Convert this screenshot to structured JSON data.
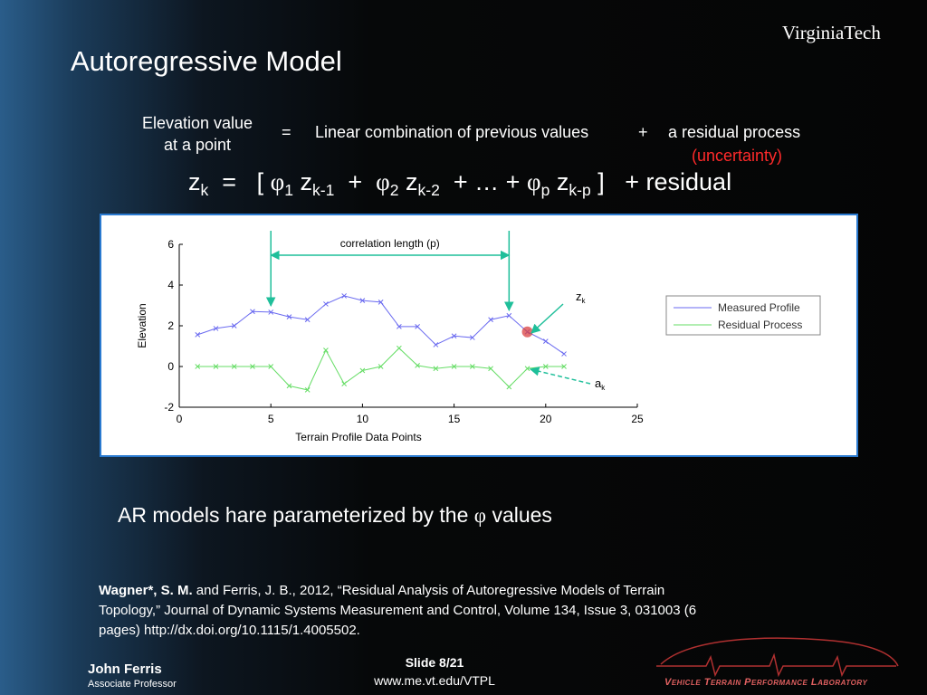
{
  "header": {
    "title": "Autoregressive Model",
    "logo": "VirginiaTech"
  },
  "definition": {
    "left": [
      "Elevation value",
      "at a point"
    ],
    "equals": "=",
    "middle": "Linear combination of previous values",
    "plus": "+",
    "right": "a residual process",
    "note": "(uncertainty)"
  },
  "equation": [
    "z",
    "k",
    "=",
    "[",
    "φ",
    "1",
    "z",
    "k-1",
    "+",
    "φ",
    "2",
    "z",
    "k-2",
    "+ … +",
    "φ",
    "p",
    "z",
    "k-p",
    "]",
    "+ residual"
  ],
  "chart_data": {
    "type": "line",
    "x": [
      1,
      2,
      3,
      4,
      5,
      6,
      7,
      8,
      9,
      10,
      11,
      12,
      13,
      14,
      15,
      16,
      17,
      18,
      19,
      20,
      21
    ],
    "series": [
      {
        "name": "Measured Profile",
        "color": "#6a6af0",
        "values": [
          1.56,
          1.87,
          2.0,
          2.7,
          2.67,
          2.44,
          2.3,
          3.07,
          3.47,
          3.24,
          3.16,
          1.96,
          1.96,
          1.07,
          1.5,
          1.42,
          2.3,
          2.5,
          1.7,
          1.24,
          0.62
        ]
      },
      {
        "name": "Residual Process",
        "color": "#66dd66",
        "values": [
          0,
          0,
          0,
          0,
          0,
          -0.95,
          -1.15,
          0.8,
          -0.85,
          -0.2,
          0,
          0.9,
          0.05,
          -0.1,
          0,
          0,
          -0.1,
          -1.0,
          -0.1,
          0,
          0
        ]
      }
    ],
    "xlim": [
      0,
      25
    ],
    "xticks": [
      0,
      5,
      10,
      15,
      20,
      25
    ],
    "ylim": [
      -2,
      6
    ],
    "yticks": [
      -2,
      0,
      2,
      4,
      6
    ],
    "xlabel": "Terrain Profile Data Points",
    "ylabel": "Elevation",
    "annotation": "correlation length (p)",
    "annotation_span": [
      5,
      18
    ],
    "zk_label": [
      "z",
      "k"
    ],
    "ak_label": [
      "a",
      "k"
    ],
    "highlight_color": "#d94040"
  },
  "summary": [
    "AR models hare parameterized by the",
    "φ",
    "values"
  ],
  "citation": {
    "authors": "Wagner*, S. M.",
    "text": "and Ferris, J. B., 2012, “Residual Analysis of Autoregressive Models of Terrain Topology,” Journal of Dynamic Systems Measurement and Control, Volume 134, Issue 3, 031003 (6 pages)  http://dx.doi.org/10.1115/1.4005502."
  },
  "footer": {
    "name": "John Ferris",
    "role": "Associate Professor",
    "slide": "Slide 8/21",
    "url": "www.me.vt.edu/VTPL",
    "lab": "Vehicle Terrain Performance Laboratory"
  }
}
